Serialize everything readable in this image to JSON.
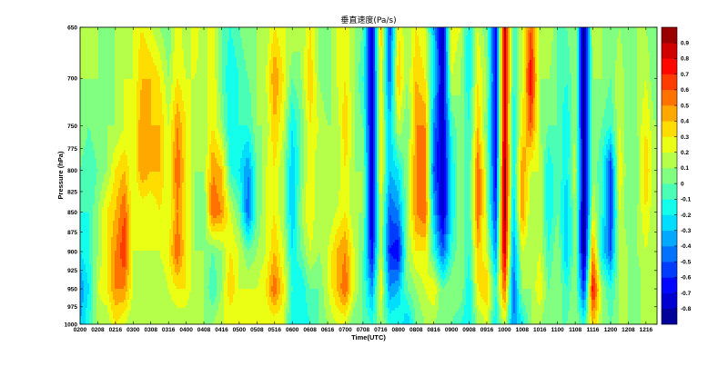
{
  "chart_data": {
    "type": "heatmap",
    "title": "垂直速度(Pa/s)",
    "xlabel": "Time(UTC)",
    "ylabel": "Pressure (hPa)",
    "x_tick_labels": [
      "0200",
      "0208",
      "0216",
      "0300",
      "0308",
      "0316",
      "0400",
      "0408",
      "0416",
      "0500",
      "0508",
      "0516",
      "0600",
      "0608",
      "0616",
      "0700",
      "0708",
      "0716",
      "0800",
      "0808",
      "0816",
      "0900",
      "0908",
      "0916",
      "1000",
      "1008",
      "1016",
      "1100",
      "1108",
      "1116",
      "1200",
      "1208",
      "1216"
    ],
    "xlim": [
      "0200",
      "1221"
    ],
    "y_ticks": [
      650,
      700,
      750,
      775,
      800,
      825,
      850,
      875,
      900,
      925,
      950,
      975,
      1000
    ],
    "ylim": [
      650,
      1000
    ],
    "y_scale": "log",
    "y_reversed": true,
    "colormap": "jet",
    "colorbar": {
      "range": [
        -0.9,
        1.0
      ],
      "step": 0.1,
      "tick_labels": [
        "-0.8",
        "-0.7",
        "-0.6",
        "-0.5",
        "-0.4",
        "-0.3",
        "-0.2",
        "-0.1",
        "0",
        "0.1",
        "0.2",
        "0.3",
        "0.4",
        "0.5",
        "0.6",
        "0.7",
        "0.8",
        "0.9"
      ]
    },
    "pressure_levels": [
      650,
      700,
      750,
      800,
      850,
      900,
      950,
      1000
    ],
    "times": [
      "0200",
      "0204",
      "0208",
      "0212",
      "0216",
      "0220",
      "0300",
      "0304",
      "0308",
      "0312",
      "0316",
      "0320",
      "0400",
      "0404",
      "0408",
      "0412",
      "0416",
      "0420",
      "0500",
      "0504",
      "0508",
      "0512",
      "0516",
      "0520",
      "0600",
      "0604",
      "0608",
      "0612",
      "0616",
      "0620",
      "0700",
      "0704",
      "0708",
      "0712",
      "0716",
      "0720",
      "0800",
      "0804",
      "0808",
      "0812",
      "0816",
      "0820",
      "0900",
      "0904",
      "0908",
      "0912",
      "0916",
      "0920",
      "1000",
      "1004",
      "1008",
      "1012",
      "1016",
      "1020",
      "1100",
      "1104",
      "1108",
      "1112",
      "1116",
      "1120",
      "1200",
      "1204",
      "1208",
      "1212",
      "1216",
      "1220"
    ],
    "values": [
      [
        0.1,
        0.1,
        0.1,
        0,
        -0.1,
        -0.2,
        -0.4,
        -0.3
      ],
      [
        0.2,
        0.1,
        0,
        -0.1,
        -0.1,
        -0.1,
        -0.2,
        -0.1
      ],
      [
        0.1,
        0.1,
        0.1,
        0,
        0.1,
        0.1,
        0.2,
        0.1
      ],
      [
        0,
        0,
        0.1,
        0.1,
        0.3,
        0.3,
        0.3,
        0.1
      ],
      [
        0.1,
        0.1,
        0.1,
        0.3,
        0.4,
        0.5,
        0.5,
        0.3
      ],
      [
        0.1,
        0.2,
        0.2,
        0.4,
        0.6,
        0.7,
        0.5,
        0.2
      ],
      [
        0.2,
        0.2,
        0.2,
        0.2,
        0.2,
        0.2,
        0.2,
        0.1
      ],
      [
        0.3,
        0.4,
        0.5,
        0.5,
        0.2,
        0.2,
        0.1,
        0.1
      ],
      [
        0.2,
        0.4,
        0.4,
        0.4,
        0.2,
        0.2,
        0.1,
        0.1
      ],
      [
        0.1,
        0.3,
        0.4,
        0.4,
        0.3,
        0.2,
        0.1,
        0.1
      ],
      [
        0,
        0.1,
        0.2,
        0.2,
        0.2,
        0.3,
        0.2,
        0.1
      ],
      [
        0.3,
        0.3,
        0.5,
        0.6,
        0.5,
        0.6,
        0.3,
        0.1
      ],
      [
        0.1,
        0.2,
        0.3,
        0.3,
        0.3,
        0.3,
        0.3,
        0.1
      ],
      [
        0.3,
        0.2,
        0.1,
        0.1,
        0.1,
        0.1,
        0.1,
        0.1
      ],
      [
        0.1,
        0.1,
        0.1,
        0.1,
        0,
        0.1,
        0.1,
        0.1
      ],
      [
        0.3,
        0.3,
        0.3,
        0.5,
        0.6,
        0,
        -0.1,
        0.1
      ],
      [
        0,
        0,
        0.1,
        0.4,
        0.5,
        0.1,
        0.1,
        0.2
      ],
      [
        -0.1,
        -0.2,
        -0.2,
        -0.1,
        0.2,
        0.3,
        0.4,
        0.2
      ],
      [
        0,
        -0.1,
        -0.1,
        -0.2,
        0,
        0.2,
        0.2,
        0.2
      ],
      [
        0.1,
        0,
        -0.1,
        -0.4,
        -0.5,
        0,
        0.2,
        0.2
      ],
      [
        0.1,
        0.1,
        0.1,
        0,
        0,
        0.1,
        0.2,
        0.2
      ],
      [
        0.1,
        0.2,
        0.1,
        0.2,
        0.2,
        0.2,
        0.3,
        0.2
      ],
      [
        0.3,
        0.5,
        0.4,
        0.3,
        0.3,
        0.4,
        0.6,
        0.2
      ],
      [
        0.2,
        0.3,
        0.2,
        0.1,
        0.1,
        0.2,
        0.3,
        0.2
      ],
      [
        0.2,
        0,
        -0.2,
        -0.3,
        -0.3,
        -0.2,
        -0.1,
        -0.2
      ],
      [
        0.1,
        0.1,
        0,
        0,
        0.1,
        0,
        -0.2,
        -0.2
      ],
      [
        0.3,
        0.4,
        0.3,
        0.3,
        0.3,
        0.2,
        0,
        -0.1
      ],
      [
        0.1,
        0.1,
        0.2,
        0.1,
        0.1,
        0.1,
        0,
        0
      ],
      [
        0,
        0,
        0.1,
        0.1,
        0.1,
        0.2,
        0.2,
        0.1
      ],
      [
        0.2,
        0.2,
        0.1,
        0.1,
        0.2,
        0.4,
        0.4,
        0.2
      ],
      [
        0.3,
        0.3,
        0.4,
        0.3,
        0.3,
        0.5,
        0.6,
        0.2
      ],
      [
        0.1,
        0.1,
        0.1,
        0.1,
        0.1,
        0.2,
        0.2,
        0
      ],
      [
        0,
        -0.1,
        0,
        0.1,
        0.1,
        0,
        0,
        0
      ],
      [
        -0.8,
        -0.8,
        -0.8,
        -0.8,
        -0.8,
        -0.7,
        -0.4,
        -0.1
      ],
      [
        0.4,
        0.3,
        0.3,
        0.3,
        0.2,
        0.2,
        0.3,
        0.1
      ],
      [
        -0.6,
        -0.5,
        -0.3,
        -0.3,
        -0.5,
        -0.6,
        -0.4,
        -0.1
      ],
      [
        0.3,
        0.4,
        0.2,
        -0.2,
        -0.4,
        -0.7,
        -0.3,
        -0.1
      ],
      [
        0.1,
        0.1,
        0,
        0.1,
        0.1,
        0.1,
        0,
        -0.3
      ],
      [
        0.3,
        0.4,
        0.5,
        0.5,
        0.5,
        0.3,
        0.1,
        0
      ],
      [
        0.2,
        0.3,
        0.5,
        0.6,
        0.6,
        0.3,
        0.2,
        0.1
      ],
      [
        -0.3,
        -0.2,
        -0.4,
        -0.5,
        -0.3,
        -0.1,
        0.3,
        0.1
      ],
      [
        -0.8,
        -0.8,
        -0.8,
        -0.8,
        -0.8,
        -0.5,
        0,
        0
      ],
      [
        0.3,
        0.2,
        -0.1,
        -0.2,
        -0.2,
        -0.1,
        0.1,
        0
      ],
      [
        0.2,
        0.1,
        0.1,
        0.1,
        0.1,
        0.1,
        0.1,
        -0.1
      ],
      [
        -0.2,
        -0.2,
        -0.1,
        -0.1,
        -0.1,
        -0.1,
        -0.2,
        -0.2
      ],
      [
        0.2,
        0.3,
        0.4,
        0.6,
        0.6,
        0.4,
        0.3,
        0.1
      ],
      [
        0,
        0.1,
        0,
        0.1,
        0.1,
        0.2,
        0.4,
        0.2
      ],
      [
        -0.7,
        -0.7,
        -0.7,
        -0.7,
        -0.6,
        -0.4,
        -0.1,
        -0.2
      ],
      [
        0.9,
        0.9,
        0.9,
        1.0,
        1.0,
        0.9,
        0.6,
        0.2
      ],
      [
        -0.1,
        -0.1,
        -0.2,
        -0.2,
        -0.3,
        -0.4,
        -0.5,
        -0.4
      ],
      [
        0.2,
        0.2,
        0.3,
        0.5,
        0.5,
        0.2,
        0.1,
        -0.2
      ],
      [
        0.6,
        0.8,
        0.6,
        0.2,
        0.1,
        0.1,
        0.1,
        0.1
      ],
      [
        0.1,
        0.1,
        0.1,
        0.2,
        0.2,
        0.2,
        0.3,
        0.1
      ],
      [
        0.2,
        0.1,
        0,
        -0.2,
        -0.2,
        -0.1,
        0,
        0
      ],
      [
        0,
        0,
        0,
        0,
        0,
        0.1,
        0.1,
        0
      ],
      [
        0,
        -0.1,
        -0.2,
        -0.2,
        -0.3,
        -0.3,
        -0.1,
        0
      ],
      [
        0.1,
        0.1,
        0.1,
        0.2,
        0.1,
        0.1,
        0.1,
        0.1
      ],
      [
        -0.9,
        -0.9,
        -0.9,
        -0.9,
        -0.9,
        -0.9,
        -0.6,
        -0.1
      ],
      [
        0.2,
        0.1,
        0.1,
        0.1,
        0.2,
        0.5,
        0.8,
        0.4
      ],
      [
        0.1,
        0.1,
        0,
        -0.1,
        -0.1,
        -0.2,
        0.1,
        0.1
      ],
      [
        0,
        0,
        -0.1,
        -0.6,
        -0.6,
        -0.5,
        -0.1,
        0
      ],
      [
        0.1,
        0.2,
        0.2,
        0.3,
        0.2,
        0.2,
        0.1,
        0.1
      ],
      [
        0,
        0,
        0,
        0,
        0,
        0.1,
        0.1,
        0.1
      ],
      [
        0.1,
        0.1,
        0.1,
        0,
        0.1,
        0.1,
        0,
        0.1
      ],
      [
        0.1,
        0.2,
        0.3,
        0.4,
        0.3,
        0.2,
        0.2,
        0.1
      ],
      [
        0,
        0,
        0.1,
        0.1,
        0.1,
        0.1,
        0.1,
        0.1
      ]
    ]
  }
}
